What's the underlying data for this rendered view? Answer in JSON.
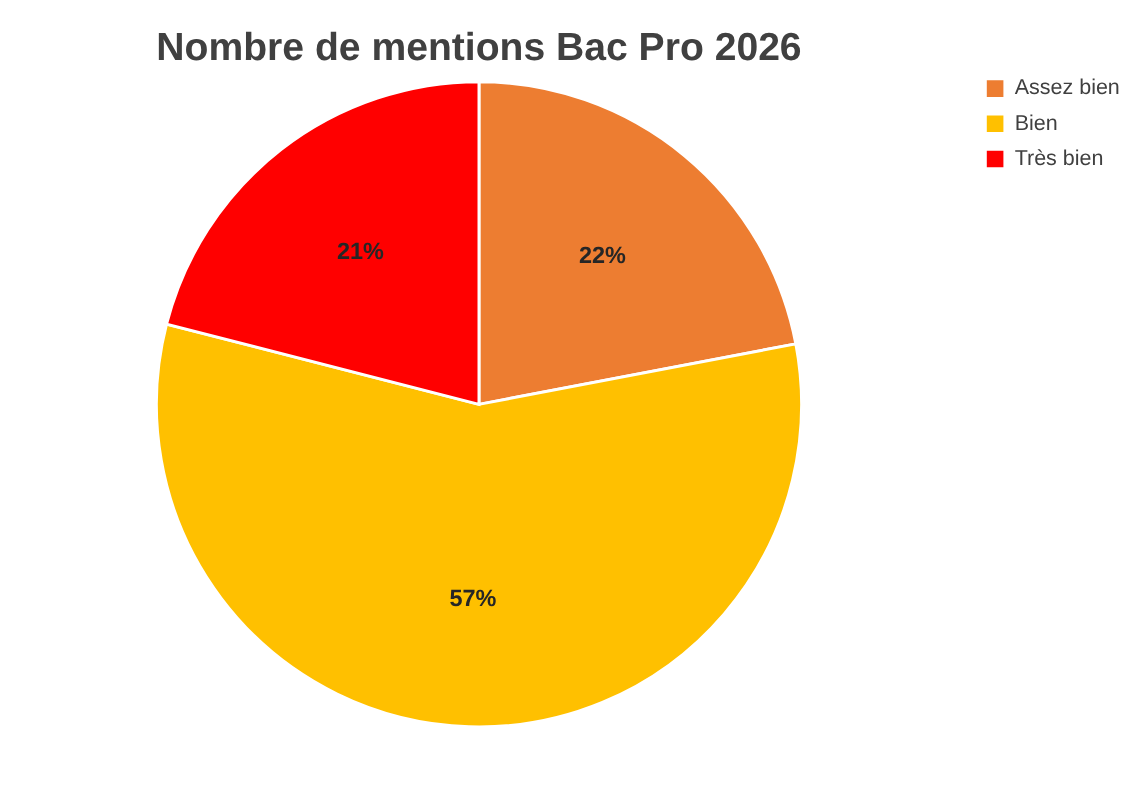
{
  "chart_data": {
    "type": "pie",
    "title": "Nombre de mentions Bac Pro 2026",
    "categories": [
      "Assez bien",
      "Bien",
      "Très bien"
    ],
    "values": [
      22,
      57,
      21
    ],
    "colors": [
      "#ed7d31",
      "#ffc000",
      "#ff0000"
    ],
    "value_labels": [
      "22%",
      "57%",
      "21%"
    ],
    "legend": "right"
  }
}
